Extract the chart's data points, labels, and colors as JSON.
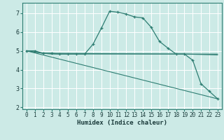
{
  "xlabel": "Humidex (Indice chaleur)",
  "bg_color": "#cceae6",
  "line_color": "#2e7d72",
  "grid_color": "#ffffff",
  "xlim": [
    -0.5,
    23.5
  ],
  "ylim": [
    1.9,
    7.55
  ],
  "yticks": [
    2,
    3,
    4,
    5,
    6,
    7
  ],
  "xticks": [
    0,
    1,
    2,
    3,
    4,
    5,
    6,
    7,
    8,
    9,
    10,
    11,
    12,
    13,
    14,
    15,
    16,
    17,
    18,
    19,
    20,
    21,
    22,
    23
  ],
  "curve1_x": [
    0,
    1,
    2,
    3,
    4,
    5,
    6,
    7,
    8,
    9,
    10,
    11,
    12,
    13,
    14,
    15,
    16,
    17,
    18,
    19,
    20,
    21,
    22,
    23
  ],
  "curve1_y": [
    5.0,
    5.0,
    4.87,
    4.87,
    4.83,
    4.83,
    4.83,
    4.83,
    5.35,
    6.2,
    7.1,
    7.05,
    6.95,
    6.8,
    6.75,
    6.25,
    5.5,
    5.15,
    4.83,
    4.83,
    4.5,
    3.25,
    2.85,
    2.45
  ],
  "curve2_x": [
    0,
    2,
    3,
    4,
    5,
    6,
    7,
    19,
    23
  ],
  "curve2_y": [
    5.0,
    4.87,
    4.83,
    4.83,
    4.83,
    4.83,
    4.83,
    4.83,
    4.83
  ],
  "curve3_x": [
    0,
    2,
    19,
    23
  ],
  "curve3_y": [
    5.0,
    4.87,
    4.83,
    4.78
  ],
  "curve4_x": [
    0,
    23
  ],
  "curve4_y": [
    5.0,
    2.45
  ]
}
